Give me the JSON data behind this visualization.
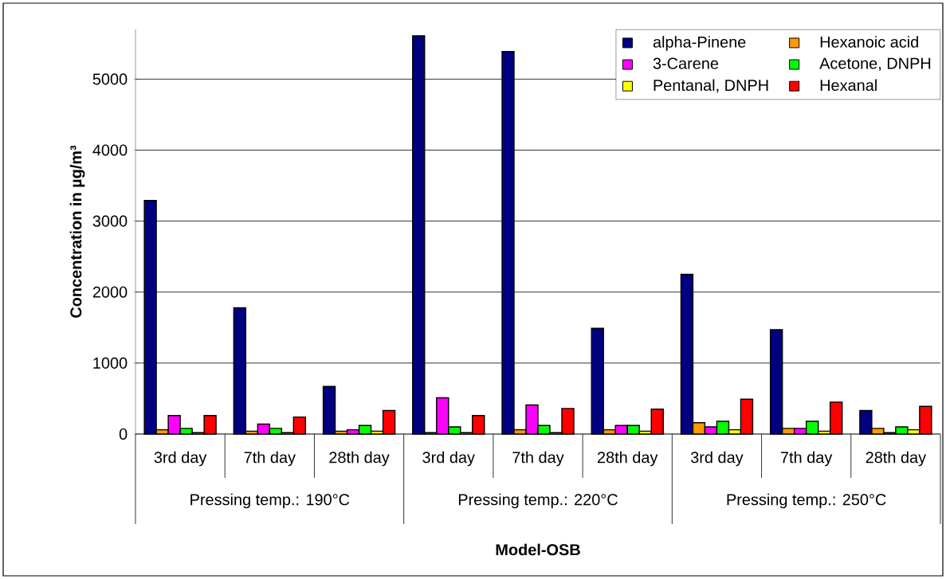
{
  "chart_data": {
    "type": "bar",
    "xlabel": "Model-OSB",
    "ylabel": "Concentration in µg/m³",
    "categories": [
      "3rd day",
      "7th day",
      "28th day",
      "3rd day",
      "7th day",
      "28th day",
      "3rd day",
      "7th day",
      "28th day"
    ],
    "annotations": [
      "Pressing temp.: 190°C",
      "Pressing temp.: 220°C",
      "Pressing temp.: 250°C"
    ],
    "series": [
      {
        "name": "alpha-Pinene",
        "color": "#000080",
        "values": [
          3290,
          1780,
          670,
          5610,
          5390,
          1490,
          2250,
          1470,
          330
        ]
      },
      {
        "name": "Hexanoic acid",
        "color": "#ff9900",
        "values": [
          60,
          40,
          40,
          20,
          60,
          60,
          160,
          80,
          80
        ]
      },
      {
        "name": "3-Carene",
        "color": "#ff00ff",
        "values": [
          260,
          140,
          60,
          510,
          410,
          120,
          100,
          80,
          20
        ]
      },
      {
        "name": "Acetone, DNPH",
        "color": "#00ff00",
        "values": [
          80,
          80,
          120,
          100,
          120,
          120,
          180,
          180,
          100
        ]
      },
      {
        "name": "Pentanal, DNPH",
        "color": "#ffff00",
        "values": [
          20,
          20,
          40,
          20,
          20,
          40,
          60,
          40,
          60
        ]
      },
      {
        "name": "Hexanal",
        "color": "#ff0000",
        "values": [
          260,
          240,
          330,
          260,
          360,
          350,
          490,
          450,
          390
        ]
      }
    ],
    "ylim": [
      0,
      5700
    ],
    "yticks": [
      0,
      1000,
      2000,
      3000,
      4000,
      5000
    ],
    "grid": "y",
    "legend": "top right"
  }
}
